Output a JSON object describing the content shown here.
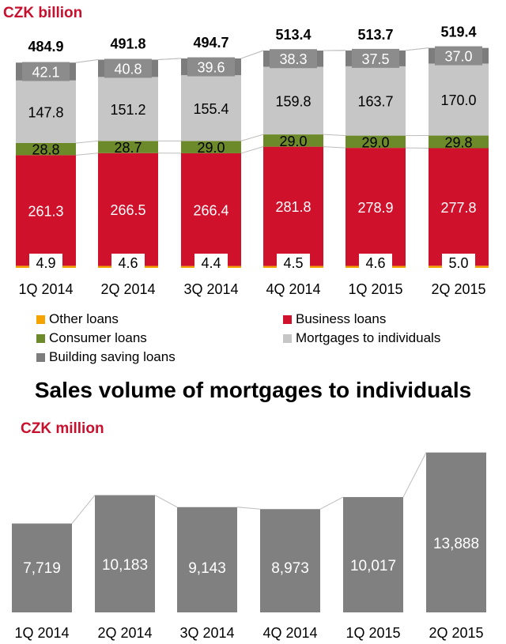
{
  "colors": {
    "accent": "#c8102e",
    "other": "#f4a300",
    "business": "#d0112b",
    "consumer": "#6d8a2a",
    "mortgage": "#c6c6c6",
    "building": "#7d7d7d",
    "sales": "#808080"
  },
  "chart_data": [
    {
      "type": "bar",
      "stacked": true,
      "unit_label": "CZK billion",
      "categories": [
        "1Q 2014",
        "2Q 2014",
        "3Q 2014",
        "4Q 2014",
        "1Q 2015",
        "2Q 2015"
      ],
      "totals": [
        "484.9",
        "491.8",
        "494.7",
        "513.4",
        "513.7",
        "519.4"
      ],
      "series": [
        {
          "key": "other",
          "name": "Other loans",
          "values": [
            4.9,
            4.6,
            4.4,
            4.5,
            4.6,
            5.0
          ],
          "labels": [
            "4.9",
            "4.6",
            "4.4",
            "4.5",
            "4.6",
            "5.0"
          ]
        },
        {
          "key": "business",
          "name": "Business loans",
          "values": [
            261.3,
            266.5,
            266.4,
            281.8,
            278.9,
            277.8
          ],
          "labels": [
            "261.3",
            "266.5",
            "266.4",
            "281.8",
            "278.9",
            "277.8"
          ]
        },
        {
          "key": "consumer",
          "name": "Consumer loans",
          "values": [
            28.8,
            28.7,
            29.0,
            29.0,
            29.0,
            29.8
          ],
          "labels": [
            "28.8",
            "28.7",
            "29.0",
            "29.0",
            "29.0",
            "29.8"
          ]
        },
        {
          "key": "mortgage",
          "name": "Mortgages to individuals",
          "values": [
            147.8,
            151.2,
            155.4,
            159.8,
            163.7,
            170.0
          ],
          "labels": [
            "147.8",
            "151.2",
            "155.4",
            "159.8",
            "163.7",
            "170.0"
          ]
        },
        {
          "key": "building",
          "name": "Building saving loans",
          "values": [
            42.1,
            40.8,
            39.6,
            38.3,
            37.5,
            37.0
          ],
          "labels": [
            "42.1",
            "40.8",
            "39.6",
            "38.3",
            "37.5",
            "37.0"
          ]
        }
      ],
      "legend": [
        "Other loans",
        "Business loans",
        "Consumer loans",
        "Mortgages to individuals",
        "Building saving loans"
      ]
    },
    {
      "type": "bar",
      "title": "Sales volume of mortgages to individuals",
      "unit_label": "CZK million",
      "categories": [
        "1Q 2014",
        "2Q 2014",
        "3Q 2014",
        "4Q 2014",
        "1Q 2015",
        "2Q 2015"
      ],
      "values": [
        7719,
        10183,
        9143,
        8973,
        10017,
        13888
      ],
      "labels": [
        "7,719",
        "10,183",
        "9,143",
        "8,973",
        "10,017",
        "13,888"
      ]
    }
  ]
}
